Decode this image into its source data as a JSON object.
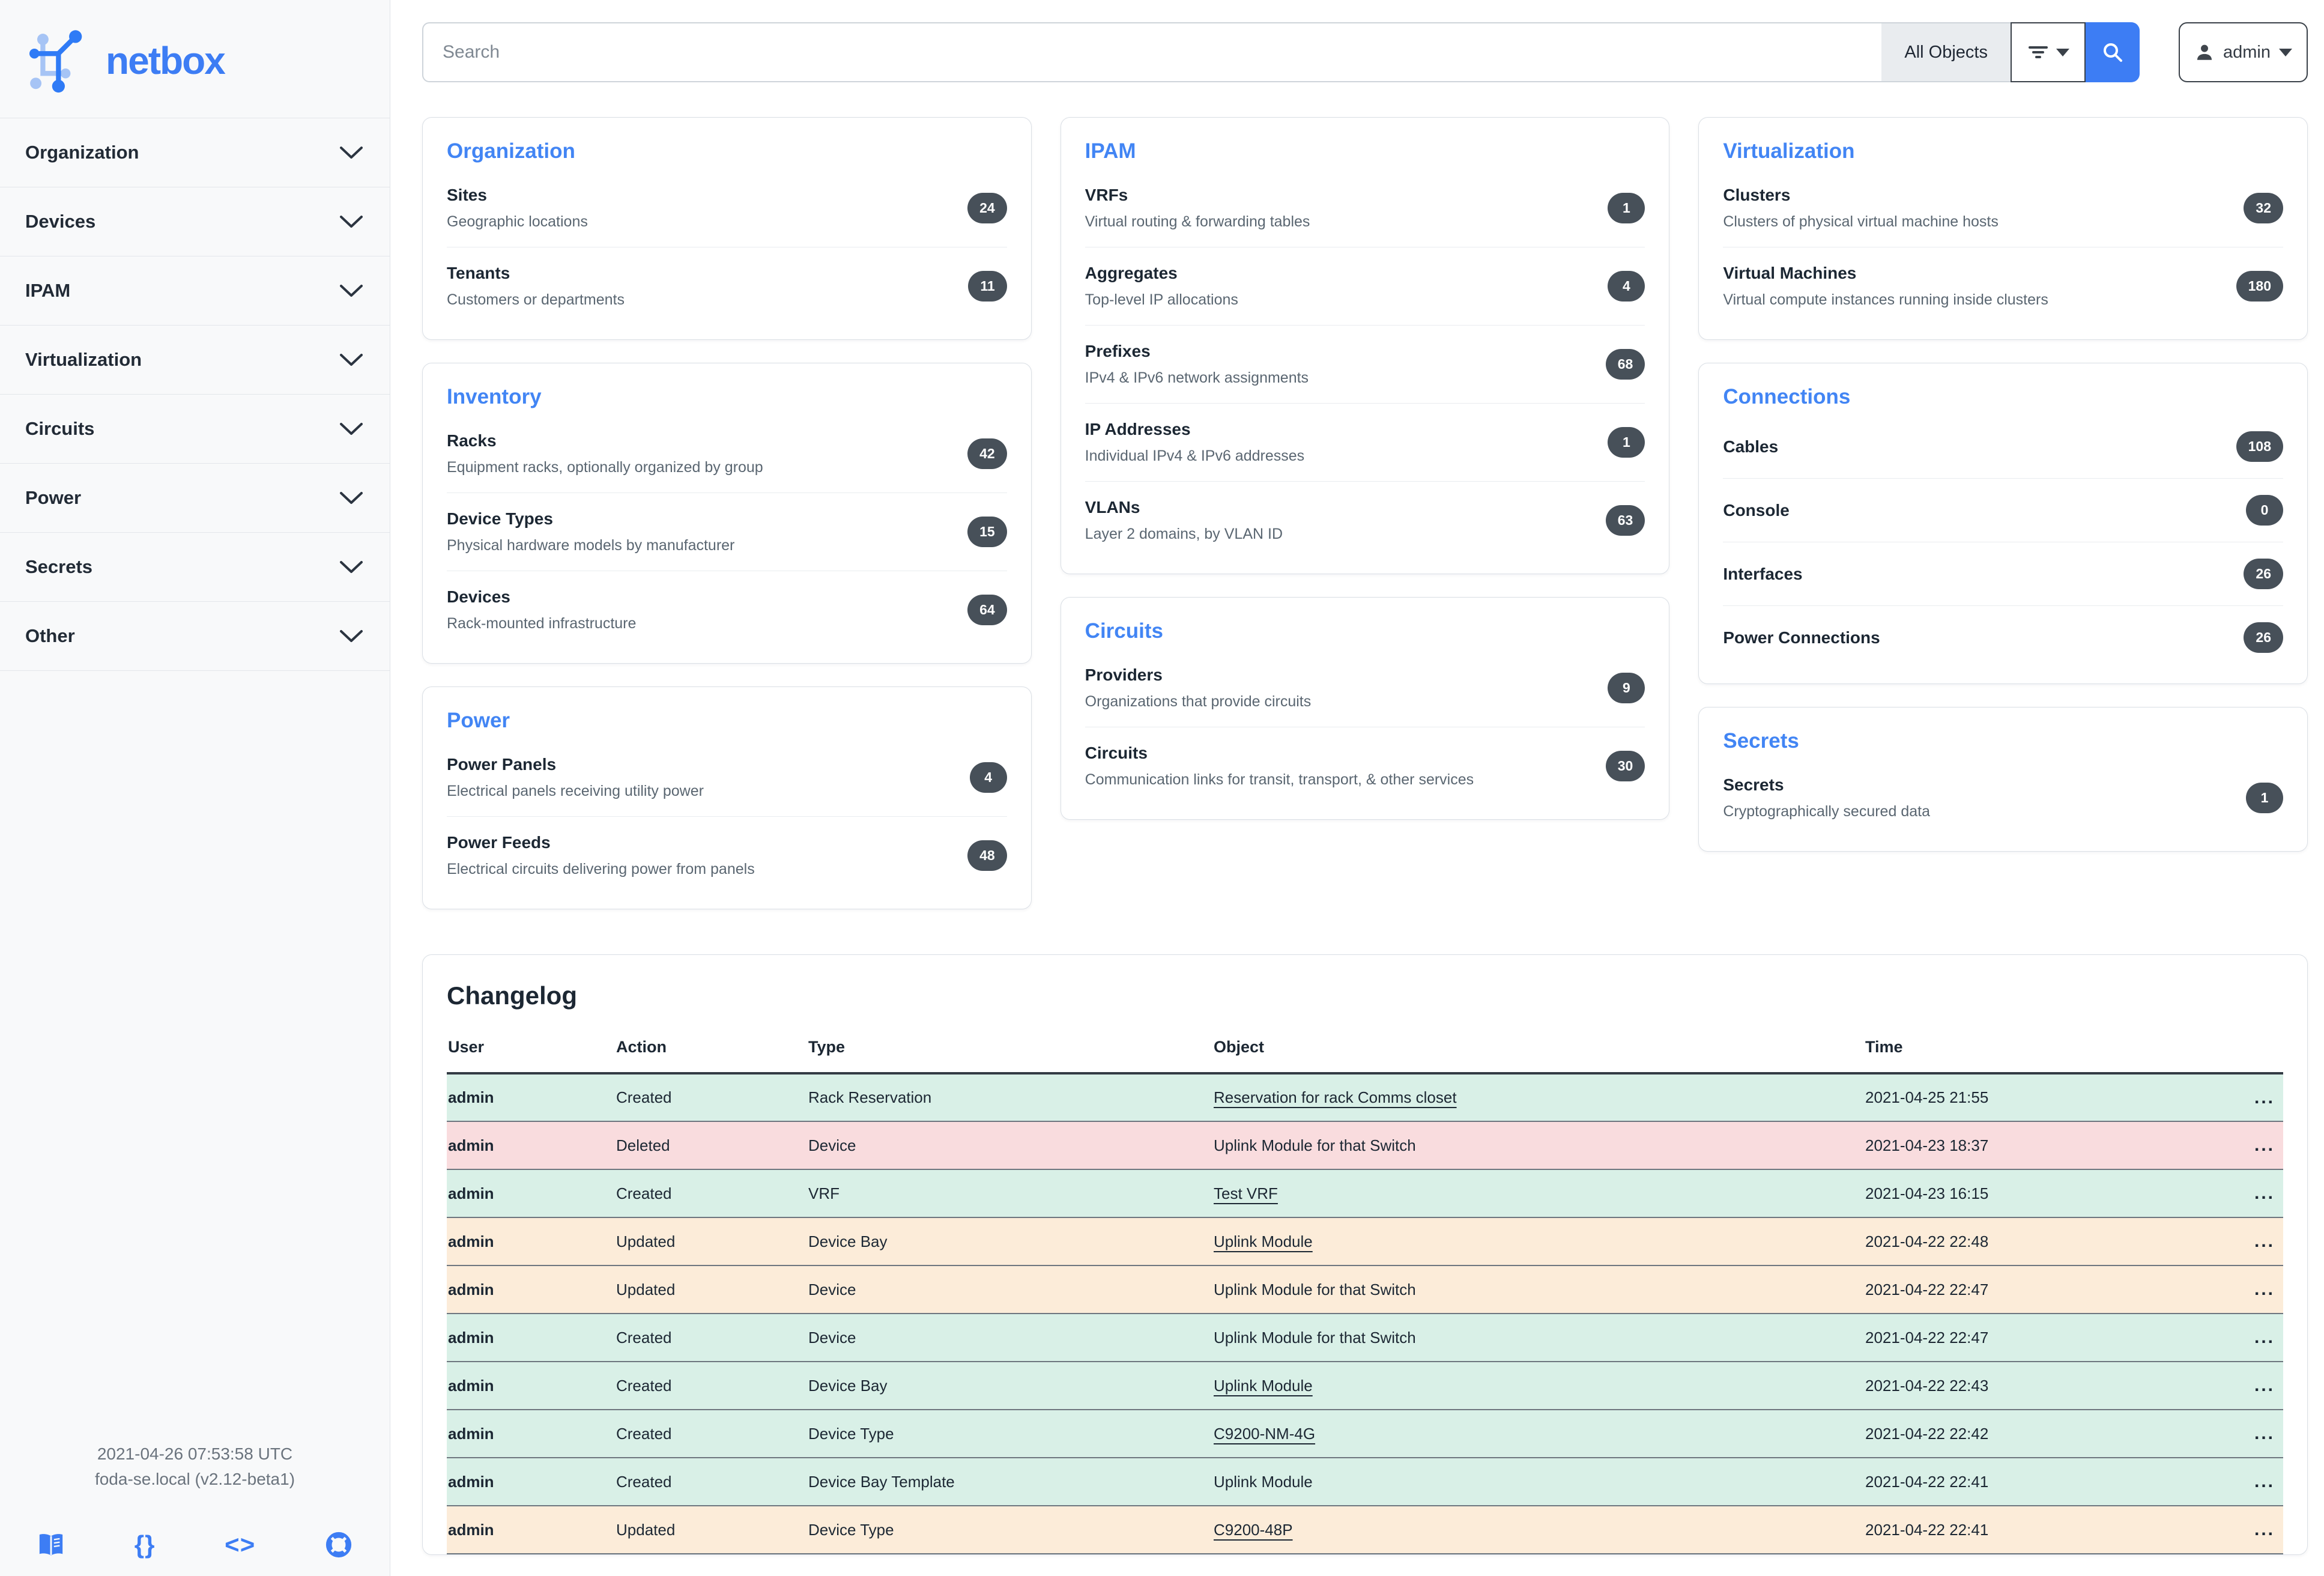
{
  "brand": {
    "name": "netbox"
  },
  "colors": {
    "accent_blue": "#3d7df4",
    "card_title_blue": "#4285f4",
    "badge_bg": "#475059",
    "row_created": "#d9f0e7",
    "row_deleted": "#f9dcde",
    "row_updated": "#fcecd9"
  },
  "sidebar": {
    "items": [
      {
        "label": "Organization"
      },
      {
        "label": "Devices"
      },
      {
        "label": "IPAM"
      },
      {
        "label": "Virtualization"
      },
      {
        "label": "Circuits"
      },
      {
        "label": "Power"
      },
      {
        "label": "Secrets"
      },
      {
        "label": "Other"
      }
    ],
    "footer": {
      "timestamp": "2021-04-26 07:53:58 UTC",
      "host": "foda-se.local (v2.12-beta1)",
      "icons": [
        {
          "name": "docs-book-icon",
          "kind": "book"
        },
        {
          "name": "rest-api-braces-icon",
          "kind": "text",
          "glyph": "{}"
        },
        {
          "name": "code-icon",
          "kind": "text",
          "glyph": "<>"
        },
        {
          "name": "support-lifebuoy-icon",
          "kind": "lifebuoy"
        }
      ]
    }
  },
  "topbar": {
    "search_placeholder": "Search",
    "scope_label": "All Objects",
    "user_label": "admin"
  },
  "dashboard": {
    "columns": [
      [
        {
          "title": "Organization",
          "items": [
            {
              "name": "Sites",
              "desc": "Geographic locations",
              "count": "24"
            },
            {
              "name": "Tenants",
              "desc": "Customers or departments",
              "count": "11"
            }
          ]
        },
        {
          "title": "Inventory",
          "items": [
            {
              "name": "Racks",
              "desc": "Equipment racks, optionally organized by group",
              "count": "42"
            },
            {
              "name": "Device Types",
              "desc": "Physical hardware models by manufacturer",
              "count": "15"
            },
            {
              "name": "Devices",
              "desc": "Rack-mounted infrastructure",
              "count": "64"
            }
          ]
        },
        {
          "title": "Power",
          "items": [
            {
              "name": "Power Panels",
              "desc": "Electrical panels receiving utility power",
              "count": "4"
            },
            {
              "name": "Power Feeds",
              "desc": "Electrical circuits delivering power from panels",
              "count": "48"
            }
          ]
        }
      ],
      [
        {
          "title": "IPAM",
          "items": [
            {
              "name": "VRFs",
              "desc": "Virtual routing & forwarding tables",
              "count": "1"
            },
            {
              "name": "Aggregates",
              "desc": "Top-level IP allocations",
              "count": "4"
            },
            {
              "name": "Prefixes",
              "desc": "IPv4 & IPv6 network assignments",
              "count": "68"
            },
            {
              "name": "IP Addresses",
              "desc": "Individual IPv4 & IPv6 addresses",
              "count": "1"
            },
            {
              "name": "VLANs",
              "desc": "Layer 2 domains, by VLAN ID",
              "count": "63"
            }
          ]
        },
        {
          "title": "Circuits",
          "items": [
            {
              "name": "Providers",
              "desc": "Organizations that provide circuits",
              "count": "9"
            },
            {
              "name": "Circuits",
              "desc": "Communication links for transit, transport, & other services",
              "count": "30"
            }
          ]
        }
      ],
      [
        {
          "title": "Virtualization",
          "items": [
            {
              "name": "Clusters",
              "desc": "Clusters of physical virtual machine hosts",
              "count": "32"
            },
            {
              "name": "Virtual Machines",
              "desc": "Virtual compute instances running inside clusters",
              "count": "180"
            }
          ]
        },
        {
          "title": "Connections",
          "items": [
            {
              "name": "Cables",
              "count": "108"
            },
            {
              "name": "Console",
              "count": "0"
            },
            {
              "name": "Interfaces",
              "count": "26"
            },
            {
              "name": "Power Connections",
              "count": "26"
            }
          ]
        },
        {
          "title": "Secrets",
          "items": [
            {
              "name": "Secrets",
              "desc": "Cryptographically secured data",
              "count": "1"
            }
          ]
        }
      ]
    ]
  },
  "changelog": {
    "title": "Changelog",
    "headers": [
      "User",
      "Action",
      "Type",
      "Object",
      "Time",
      ""
    ],
    "rows": [
      {
        "user": "admin",
        "action": "Created",
        "type": "Rack Reservation",
        "object": "Reservation for rack Comms closet",
        "object_is_link": true,
        "time": "2021-04-25 21:55",
        "tone": "created"
      },
      {
        "user": "admin",
        "action": "Deleted",
        "type": "Device",
        "object": "Uplink Module for that Switch",
        "object_is_link": false,
        "time": "2021-04-23 18:37",
        "tone": "deleted"
      },
      {
        "user": "admin",
        "action": "Created",
        "type": "VRF",
        "object": "Test VRF",
        "object_is_link": true,
        "time": "2021-04-23 16:15",
        "tone": "created"
      },
      {
        "user": "admin",
        "action": "Updated",
        "type": "Device Bay",
        "object": "Uplink Module",
        "object_is_link": true,
        "time": "2021-04-22 22:48",
        "tone": "updated"
      },
      {
        "user": "admin",
        "action": "Updated",
        "type": "Device",
        "object": "Uplink Module for that Switch",
        "object_is_link": false,
        "time": "2021-04-22 22:47",
        "tone": "updated"
      },
      {
        "user": "admin",
        "action": "Created",
        "type": "Device",
        "object": "Uplink Module for that Switch",
        "object_is_link": false,
        "time": "2021-04-22 22:47",
        "tone": "created"
      },
      {
        "user": "admin",
        "action": "Created",
        "type": "Device Bay",
        "object": "Uplink Module",
        "object_is_link": true,
        "time": "2021-04-22 22:43",
        "tone": "created"
      },
      {
        "user": "admin",
        "action": "Created",
        "type": "Device Type",
        "object": "C9200-NM-4G",
        "object_is_link": true,
        "time": "2021-04-22 22:42",
        "tone": "created"
      },
      {
        "user": "admin",
        "action": "Created",
        "type": "Device Bay Template",
        "object": "Uplink Module",
        "object_is_link": false,
        "time": "2021-04-22 22:41",
        "tone": "created"
      },
      {
        "user": "admin",
        "action": "Updated",
        "type": "Device Type",
        "object": "C9200-48P",
        "object_is_link": true,
        "time": "2021-04-22 22:41",
        "tone": "updated"
      }
    ],
    "row_actions_glyph": "..."
  }
}
